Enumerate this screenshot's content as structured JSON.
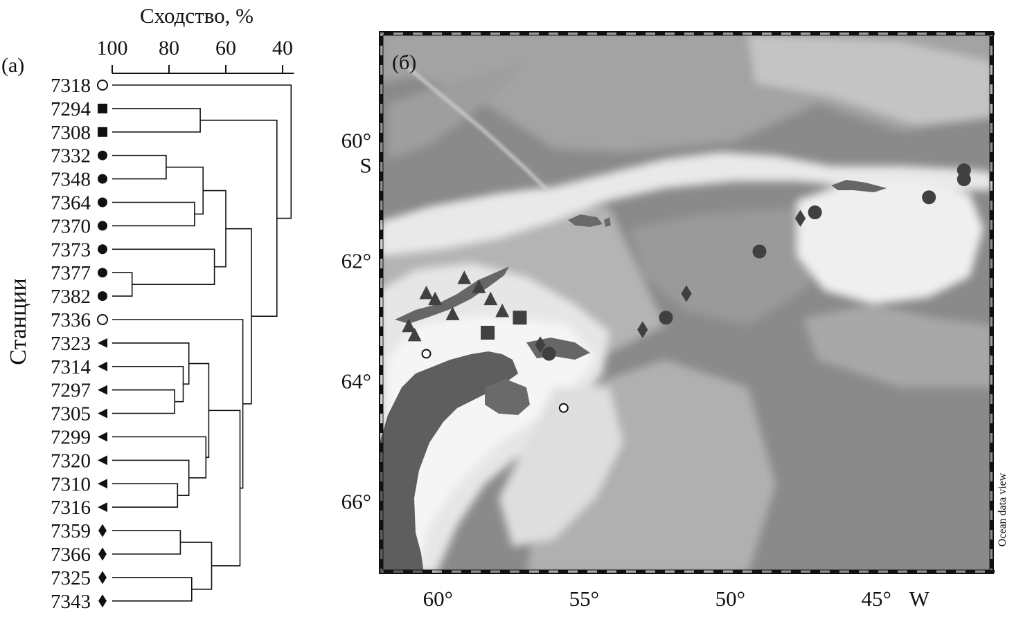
{
  "panel_a": {
    "label": "(а)",
    "axis_title": "Сходство, %",
    "ylabel": "Станции",
    "ticks": [
      "100",
      "80",
      "60",
      "40"
    ],
    "tick_values": [
      100,
      80,
      60,
      40
    ],
    "stations": [
      {
        "id": "7318",
        "symbol": "circle-open"
      },
      {
        "id": "7294",
        "symbol": "square"
      },
      {
        "id": "7308",
        "symbol": "square"
      },
      {
        "id": "7332",
        "symbol": "circle"
      },
      {
        "id": "7348",
        "symbol": "circle"
      },
      {
        "id": "7364",
        "symbol": "circle"
      },
      {
        "id": "7370",
        "symbol": "circle"
      },
      {
        "id": "7373",
        "symbol": "circle"
      },
      {
        "id": "7377",
        "symbol": "circle"
      },
      {
        "id": "7382",
        "symbol": "circle"
      },
      {
        "id": "7336",
        "symbol": "circle-open"
      },
      {
        "id": "7323",
        "symbol": "triangle-left"
      },
      {
        "id": "7314",
        "symbol": "triangle-left"
      },
      {
        "id": "7297",
        "symbol": "triangle-left"
      },
      {
        "id": "7305",
        "symbol": "triangle-left"
      },
      {
        "id": "7299",
        "symbol": "triangle-left"
      },
      {
        "id": "7320",
        "symbol": "triangle-left"
      },
      {
        "id": "7310",
        "symbol": "triangle-left"
      },
      {
        "id": "7316",
        "symbol": "triangle-left"
      },
      {
        "id": "7359",
        "symbol": "diamond"
      },
      {
        "id": "7366",
        "symbol": "diamond"
      },
      {
        "id": "7325",
        "symbol": "diamond"
      },
      {
        "id": "7343",
        "symbol": "diamond"
      }
    ],
    "merges": [
      {
        "id": "n1",
        "a": "7294",
        "b": "7308",
        "sim": 69
      },
      {
        "id": "n2",
        "a": "7332",
        "b": "7348",
        "sim": 81
      },
      {
        "id": "n3",
        "a": "7364",
        "b": "7370",
        "sim": 71
      },
      {
        "id": "n4",
        "a": "n2",
        "b": "n3",
        "sim": 68
      },
      {
        "id": "n5",
        "a": "7377",
        "b": "7382",
        "sim": 93
      },
      {
        "id": "n6",
        "a": "7373",
        "b": "n5",
        "sim": 64
      },
      {
        "id": "n7",
        "a": "n4",
        "b": "n6",
        "sim": 60
      },
      {
        "id": "n8",
        "a": "7297",
        "b": "7305",
        "sim": 78
      },
      {
        "id": "n9",
        "a": "7314",
        "b": "n8",
        "sim": 75
      },
      {
        "id": "n10",
        "a": "7323",
        "b": "n9",
        "sim": 73
      },
      {
        "id": "n11",
        "a": "7310",
        "b": "7316",
        "sim": 77
      },
      {
        "id": "n12",
        "a": "7320",
        "b": "n11",
        "sim": 73
      },
      {
        "id": "n13",
        "a": "7299",
        "b": "n12",
        "sim": 67
      },
      {
        "id": "n14",
        "a": "n10",
        "b": "n13",
        "sim": 66
      },
      {
        "id": "n15",
        "a": "7359",
        "b": "7366",
        "sim": 76
      },
      {
        "id": "n16",
        "a": "7325",
        "b": "7343",
        "sim": 72
      },
      {
        "id": "n17",
        "a": "n15",
        "b": "n16",
        "sim": 65
      },
      {
        "id": "n18",
        "a": "n14",
        "b": "n17",
        "sim": 55
      },
      {
        "id": "n19",
        "a": "7336",
        "b": "n18",
        "sim": 54
      },
      {
        "id": "n20",
        "a": "n7",
        "b": "n19",
        "sim": 51
      },
      {
        "id": "n21",
        "a": "n1",
        "b": "n20",
        "sim": 42
      },
      {
        "id": "n22",
        "a": "7318",
        "b": "n21",
        "sim": 37
      }
    ]
  },
  "panel_b": {
    "label": "(б)",
    "credit": "Ocean data view",
    "lat_labels": [
      "60°",
      "S",
      "62°",
      "64°",
      "66°"
    ],
    "lon_labels": [
      "60°",
      "55°",
      "50°",
      "45°",
      "W"
    ],
    "lon_range": [
      -62,
      -41
    ],
    "lat_range": [
      -58.2,
      -67.2
    ],
    "colors": {
      "deep": "#888888",
      "mid": "#a6a6a6",
      "shallow": "#cbcbcb",
      "shelf": "#f3f3f3",
      "land": "#5e5e5e",
      "marker": "#404040"
    },
    "station_points": [
      {
        "symbol": "circle",
        "lon": -42.0,
        "lat": -60.5
      },
      {
        "symbol": "circle",
        "lon": -42.0,
        "lat": -60.65
      },
      {
        "symbol": "circle",
        "lon": -43.2,
        "lat": -60.95
      },
      {
        "symbol": "circle",
        "lon": -47.1,
        "lat": -61.2
      },
      {
        "symbol": "circle",
        "lon": -49.0,
        "lat": -61.85
      },
      {
        "symbol": "circle",
        "lon": -52.2,
        "lat": -62.95
      },
      {
        "symbol": "circle",
        "lon": -56.2,
        "lat": -63.55
      },
      {
        "symbol": "diamond",
        "lon": -47.6,
        "lat": -61.3
      },
      {
        "symbol": "diamond",
        "lon": -51.5,
        "lat": -62.55
      },
      {
        "symbol": "diamond",
        "lon": -53.0,
        "lat": -63.15
      },
      {
        "symbol": "diamond",
        "lon": -56.5,
        "lat": -63.4
      },
      {
        "symbol": "triangle",
        "lon": -60.4,
        "lat": -62.55
      },
      {
        "symbol": "triangle",
        "lon": -60.1,
        "lat": -62.65
      },
      {
        "symbol": "triangle",
        "lon": -59.1,
        "lat": -62.3
      },
      {
        "symbol": "triangle",
        "lon": -58.6,
        "lat": -62.45
      },
      {
        "symbol": "triangle",
        "lon": -58.2,
        "lat": -62.65
      },
      {
        "symbol": "triangle",
        "lon": -57.8,
        "lat": -62.85
      },
      {
        "symbol": "triangle",
        "lon": -59.5,
        "lat": -62.9
      },
      {
        "symbol": "triangle",
        "lon": -61.0,
        "lat": -63.1
      },
      {
        "symbol": "triangle",
        "lon": -60.8,
        "lat": -63.25
      },
      {
        "symbol": "square",
        "lon": -57.2,
        "lat": -62.95
      },
      {
        "symbol": "square",
        "lon": -58.3,
        "lat": -63.2
      },
      {
        "symbol": "circle-open",
        "lon": -60.4,
        "lat": -63.55
      },
      {
        "symbol": "circle-open",
        "lon": -55.7,
        "lat": -64.45
      }
    ]
  }
}
